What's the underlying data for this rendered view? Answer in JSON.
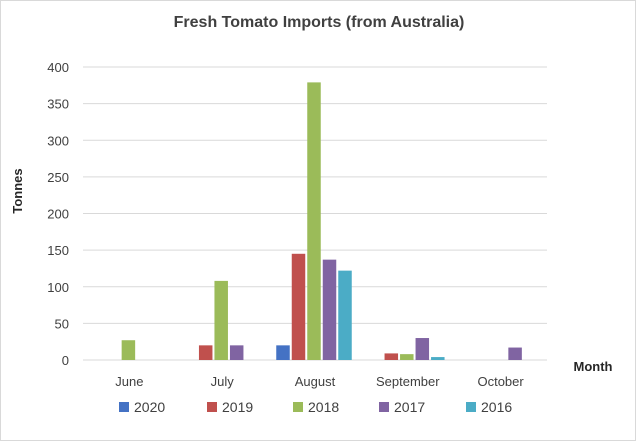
{
  "chart_data": {
    "type": "bar",
    "title": "Fresh Tomato Imports (from Australia)",
    "xlabel": "Month",
    "ylabel": "Tonnes",
    "categories": [
      "June",
      "July",
      "August",
      "September",
      "October"
    ],
    "series": [
      {
        "name": "2020",
        "color": "#4472c4",
        "values": [
          0,
          0,
          20,
          0,
          0
        ]
      },
      {
        "name": "2019",
        "color": "#c0504d",
        "values": [
          0,
          20,
          145,
          9,
          0
        ]
      },
      {
        "name": "2018",
        "color": "#9bbb59",
        "values": [
          27,
          108,
          379,
          8,
          0
        ]
      },
      {
        "name": "2017",
        "color": "#8064a2",
        "values": [
          0,
          20,
          137,
          30,
          17
        ]
      },
      {
        "name": "2016",
        "color": "#4bacc6",
        "values": [
          0,
          0,
          122,
          4,
          0
        ]
      }
    ],
    "ylim": [
      0,
      400
    ],
    "yticks": [
      0,
      50,
      100,
      150,
      200,
      250,
      300,
      350,
      400
    ],
    "grid": true,
    "legend_position": "bottom"
  }
}
